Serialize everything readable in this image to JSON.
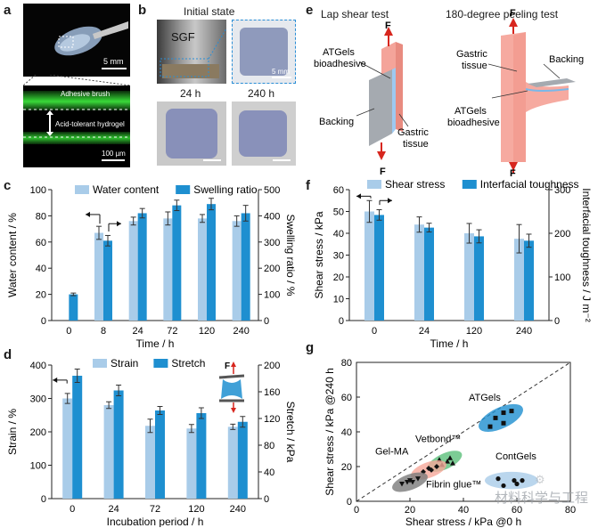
{
  "panel_labels": {
    "a": "a",
    "b": "b",
    "c": "c",
    "d": "d",
    "e": "e",
    "f": "f",
    "g": "g"
  },
  "panel_a": {
    "scale_top": "5 mm",
    "adhesive_label": "Adhesive brush",
    "hydrogel_label": "Acid-tolerant hydrogel",
    "scale_bottom": "100 µm"
  },
  "panel_b": {
    "title": "Initial state",
    "sgf_label": "SGF",
    "scale": "5 mm",
    "t1": "24 h",
    "t2": "240 h"
  },
  "panel_e": {
    "lap_title": "Lap shear test",
    "peel_title": "180-degree peeling test",
    "force": "F",
    "atgels": "ATGels",
    "bioadhesive": "bioadhesive",
    "backing": "Backing",
    "gastric": "Gastric",
    "tissue": "tissue",
    "peel_gastric": "Gastric",
    "peel_tissue": "tissue",
    "peel_backing": "Backing",
    "peel_atgels": "ATGels",
    "peel_bio": "bioadhesive"
  },
  "colors": {
    "light": "#a9cce9",
    "dark": "#1e8fd0",
    "green": "#33cc33",
    "pink": "#f6a89a",
    "gray": "#9ea3a8"
  },
  "chart_data": [
    {
      "id": "c",
      "type": "bar",
      "categories": [
        "0",
        "8",
        "24",
        "72",
        "120",
        "240"
      ],
      "xlabel": "Time / h",
      "ylabel_left": "Water content / %",
      "ylabel_right": "Swelling ratio / %",
      "ylim_left": [
        0,
        100
      ],
      "ylim_right": [
        0,
        500
      ],
      "yticks_left": [
        "0",
        "20",
        "40",
        "60",
        "80",
        "100"
      ],
      "yticks_right": [
        "0",
        "100",
        "200",
        "300",
        "400",
        "500"
      ],
      "series": [
        {
          "name": "Water content",
          "axis": "left",
          "values": [
            null,
            67,
            76,
            78,
            78,
            76
          ],
          "err": [
            0,
            5,
            3,
            5,
            3,
            4
          ]
        },
        {
          "name": "Swelling ratio",
          "axis": "right",
          "values": [
            100,
            305,
            410,
            440,
            445,
            410
          ],
          "err": [
            5,
            20,
            18,
            20,
            22,
            30
          ]
        }
      ]
    },
    {
      "id": "d",
      "type": "bar",
      "categories": [
        "0",
        "24",
        "72",
        "120",
        "240"
      ],
      "xlabel": "Incubation period / h",
      "ylabel_left": "Strain / %",
      "ylabel_right": "Stretch / kPa",
      "ylim_left": [
        0,
        400
      ],
      "ylim_right": [
        0,
        200
      ],
      "yticks_left": [
        "0",
        "100",
        "200",
        "300",
        "400"
      ],
      "yticks_right": [
        "0",
        "40",
        "80",
        "120",
        "160",
        "200"
      ],
      "force": "F",
      "series": [
        {
          "name": "Strain",
          "axis": "left",
          "values": [
            300,
            280,
            218,
            210,
            215
          ],
          "err": [
            15,
            10,
            20,
            12,
            8
          ]
        },
        {
          "name": "Stretch",
          "axis": "right",
          "values": [
            184,
            162,
            132,
            128,
            115
          ],
          "err": [
            10,
            8,
            6,
            8,
            8
          ]
        }
      ]
    },
    {
      "id": "f",
      "type": "bar",
      "categories": [
        "0",
        "24",
        "120",
        "240"
      ],
      "xlabel": "Time / h",
      "ylabel_left": "Shear stress / kPa",
      "ylabel_right": "Interfacial toughness / J m⁻²",
      "ylim_left": [
        0,
        60
      ],
      "ylim_right": [
        0,
        300
      ],
      "yticks_left": [
        "0",
        "10",
        "20",
        "30",
        "40",
        "50",
        "60"
      ],
      "yticks_right": [
        "0",
        "100",
        "200",
        "300"
      ],
      "series": [
        {
          "name": "Shear stress",
          "axis": "left",
          "values": [
            50,
            44,
            40,
            37.5
          ],
          "err": [
            5,
            3.5,
            4.5,
            6.5
          ]
        },
        {
          "name": "Interfacial toughness",
          "axis": "right",
          "values": [
            242,
            213,
            193,
            183
          ],
          "err": [
            12,
            10,
            15,
            15
          ]
        }
      ]
    },
    {
      "id": "g",
      "type": "scatter",
      "xlabel": "Shear stress / kPa @0 h",
      "ylabel": "Shear stress / kPa @240 h",
      "xlim": [
        0,
        80
      ],
      "ylim": [
        0,
        80
      ],
      "xticks": [
        "0",
        "20",
        "40",
        "60",
        "80"
      ],
      "yticks": [
        "0",
        "20",
        "40",
        "60",
        "80"
      ],
      "groups": [
        {
          "name": "ATGels",
          "color": "#1e8fd0",
          "marker": "square",
          "points": [
            [
              50,
              43
            ],
            [
              52,
              48
            ],
            [
              55,
              45
            ],
            [
              55,
              51
            ],
            [
              58,
              52
            ]
          ],
          "ellipse": [
            54,
            48,
            9,
            6,
            -25
          ]
        },
        {
          "name": "ContGels",
          "color": "#a9cce9",
          "marker": "circle",
          "points": [
            [
              53,
              13
            ],
            [
              55,
              9
            ],
            [
              59,
              12
            ],
            [
              60,
              10
            ],
            [
              62,
              12
            ]
          ],
          "ellipse": [
            58,
            12,
            10,
            5,
            0
          ]
        },
        {
          "name": "Vetbond™",
          "color": "#5bbf7a",
          "marker": "triangle",
          "points": [
            [
              31,
              24
            ],
            [
              32,
              21
            ],
            [
              34,
              23
            ],
            [
              35,
              25
            ],
            [
              36,
              22
            ]
          ],
          "ellipse": [
            33,
            23,
            7,
            4.5,
            -25
          ]
        },
        {
          "name": "Fibrin glue™",
          "color": "#f6a89a",
          "marker": "diamond",
          "points": [
            [
              25,
              17
            ],
            [
              27,
              19
            ],
            [
              28,
              18
            ],
            [
              30,
              20
            ]
          ],
          "ellipse": [
            27,
            18,
            7,
            4.5,
            -20
          ]
        },
        {
          "name": "Gel-MA",
          "color": "#7a7a7a",
          "marker": "triangle-down",
          "points": [
            [
              17,
              10
            ],
            [
              19,
              11
            ],
            [
              20,
              12
            ],
            [
              21,
              11
            ],
            [
              23,
              13
            ]
          ],
          "ellipse": [
            20,
            11,
            7,
            4.5,
            -20
          ]
        }
      ]
    }
  ],
  "watermark": "材料科学与工程"
}
